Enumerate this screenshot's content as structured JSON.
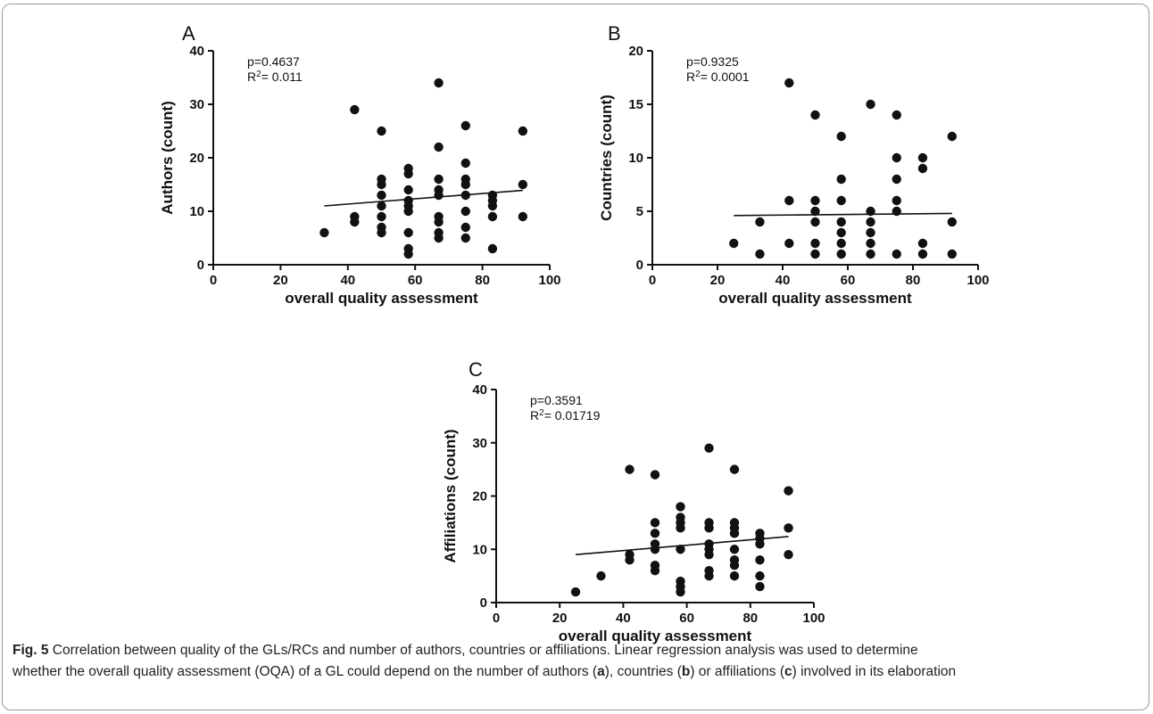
{
  "chart_data": [
    {
      "type": "scatter",
      "panel": "A",
      "stats": {
        "p": "p=0.4637",
        "r2_label": "R",
        "r2_sup": "2",
        "r2_value": "= 0.011"
      },
      "xlabel": "overall quality assessment",
      "ylabel": "Authors (count)",
      "xlim": [
        0,
        100
      ],
      "ylim": [
        0,
        40
      ],
      "xticks": [
        0,
        20,
        40,
        60,
        80,
        100
      ],
      "yticks": [
        0,
        10,
        20,
        30,
        40
      ],
      "regression": {
        "x": [
          33,
          92
        ],
        "y": [
          11.0,
          13.9
        ]
      },
      "points": [
        [
          33,
          6
        ],
        [
          42,
          29
        ],
        [
          42,
          9
        ],
        [
          42,
          8
        ],
        [
          50,
          25
        ],
        [
          50,
          16
        ],
        [
          50,
          15
        ],
        [
          50,
          13
        ],
        [
          50,
          11
        ],
        [
          50,
          9
        ],
        [
          50,
          7
        ],
        [
          50,
          6
        ],
        [
          58,
          18
        ],
        [
          58,
          17
        ],
        [
          58,
          14
        ],
        [
          58,
          12
        ],
        [
          58,
          11
        ],
        [
          58,
          10
        ],
        [
          58,
          6
        ],
        [
          58,
          3
        ],
        [
          58,
          2
        ],
        [
          67,
          34
        ],
        [
          67,
          22
        ],
        [
          67,
          16
        ],
        [
          67,
          14
        ],
        [
          67,
          13
        ],
        [
          67,
          9
        ],
        [
          67,
          8
        ],
        [
          67,
          6
        ],
        [
          67,
          5
        ],
        [
          75,
          26
        ],
        [
          75,
          19
        ],
        [
          75,
          16
        ],
        [
          75,
          15
        ],
        [
          75,
          13
        ],
        [
          75,
          10
        ],
        [
          75,
          7
        ],
        [
          75,
          5
        ],
        [
          83,
          13
        ],
        [
          83,
          12
        ],
        [
          83,
          11
        ],
        [
          83,
          9
        ],
        [
          83,
          3
        ],
        [
          92,
          25
        ],
        [
          92,
          15
        ],
        [
          92,
          9
        ]
      ]
    },
    {
      "type": "scatter",
      "panel": "B",
      "stats": {
        "p": "p=0.9325",
        "r2_label": "R",
        "r2_sup": "2",
        "r2_value": "= 0.0001"
      },
      "xlabel": "overall quality assessment",
      "ylabel": "Countries (count)",
      "xlim": [
        0,
        100
      ],
      "ylim": [
        0,
        20
      ],
      "xticks": [
        0,
        20,
        40,
        60,
        80,
        100
      ],
      "yticks": [
        0,
        5,
        10,
        15,
        20
      ],
      "regression": {
        "x": [
          25,
          92
        ],
        "y": [
          4.6,
          4.8
        ]
      },
      "points": [
        [
          25,
          2
        ],
        [
          33,
          4
        ],
        [
          33,
          1
        ],
        [
          42,
          17
        ],
        [
          42,
          6
        ],
        [
          42,
          2
        ],
        [
          50,
          14
        ],
        [
          50,
          6
        ],
        [
          50,
          5
        ],
        [
          50,
          4
        ],
        [
          50,
          2
        ],
        [
          50,
          1
        ],
        [
          58,
          12
        ],
        [
          58,
          8
        ],
        [
          58,
          6
        ],
        [
          58,
          4
        ],
        [
          58,
          3
        ],
        [
          58,
          2
        ],
        [
          58,
          1
        ],
        [
          67,
          15
        ],
        [
          67,
          5
        ],
        [
          67,
          4
        ],
        [
          67,
          3
        ],
        [
          67,
          2
        ],
        [
          67,
          1
        ],
        [
          75,
          14
        ],
        [
          75,
          10
        ],
        [
          75,
          8
        ],
        [
          75,
          6
        ],
        [
          75,
          5
        ],
        [
          75,
          1
        ],
        [
          83,
          10
        ],
        [
          83,
          9
        ],
        [
          83,
          2
        ],
        [
          83,
          1
        ],
        [
          92,
          12
        ],
        [
          92,
          4
        ],
        [
          92,
          1
        ]
      ]
    },
    {
      "type": "scatter",
      "panel": "C",
      "stats": {
        "p": "p=0.3591",
        "r2_label": "R",
        "r2_sup": "2",
        "r2_value": "= 0.01719"
      },
      "xlabel": "overall quality assessment",
      "ylabel": "Affiliations (count)",
      "xlim": [
        0,
        100
      ],
      "ylim": [
        0,
        40
      ],
      "xticks": [
        0,
        20,
        40,
        60,
        80,
        100
      ],
      "yticks": [
        0,
        10,
        20,
        30,
        40
      ],
      "regression": {
        "x": [
          25,
          92
        ],
        "y": [
          9.0,
          12.4
        ]
      },
      "points": [
        [
          25,
          2
        ],
        [
          33,
          5
        ],
        [
          42,
          25
        ],
        [
          42,
          9
        ],
        [
          42,
          8
        ],
        [
          50,
          24
        ],
        [
          50,
          15
        ],
        [
          50,
          13
        ],
        [
          50,
          11
        ],
        [
          50,
          10
        ],
        [
          50,
          7
        ],
        [
          50,
          6
        ],
        [
          58,
          18
        ],
        [
          58,
          16
        ],
        [
          58,
          15
        ],
        [
          58,
          14
        ],
        [
          58,
          10
        ],
        [
          58,
          4
        ],
        [
          58,
          3
        ],
        [
          58,
          2
        ],
        [
          67,
          29
        ],
        [
          67,
          15
        ],
        [
          67,
          14
        ],
        [
          67,
          11
        ],
        [
          67,
          10
        ],
        [
          67,
          9
        ],
        [
          67,
          6
        ],
        [
          67,
          5
        ],
        [
          75,
          25
        ],
        [
          75,
          15
        ],
        [
          75,
          14
        ],
        [
          75,
          13
        ],
        [
          75,
          10
        ],
        [
          75,
          8
        ],
        [
          75,
          7
        ],
        [
          75,
          5
        ],
        [
          83,
          13
        ],
        [
          83,
          12
        ],
        [
          83,
          11
        ],
        [
          83,
          8
        ],
        [
          83,
          5
        ],
        [
          83,
          3
        ],
        [
          92,
          21
        ],
        [
          92,
          14
        ],
        [
          92,
          9
        ]
      ]
    }
  ],
  "caption": {
    "fig_label": "Fig. 5",
    "line1": " Correlation between quality of the GLs/RCs and number of authors, countries or affiliations. Linear regression analysis was used to determine",
    "line2_part1": "whether the overall quality assessment (OQA) of a GL could depend on the number of authors (",
    "ref_a": "a",
    "line2_part2": "), countries (",
    "ref_b": "b",
    "line2_part3": ") or affiliations (",
    "ref_c": "c",
    "line2_part4": ") involved in its elaboration"
  }
}
